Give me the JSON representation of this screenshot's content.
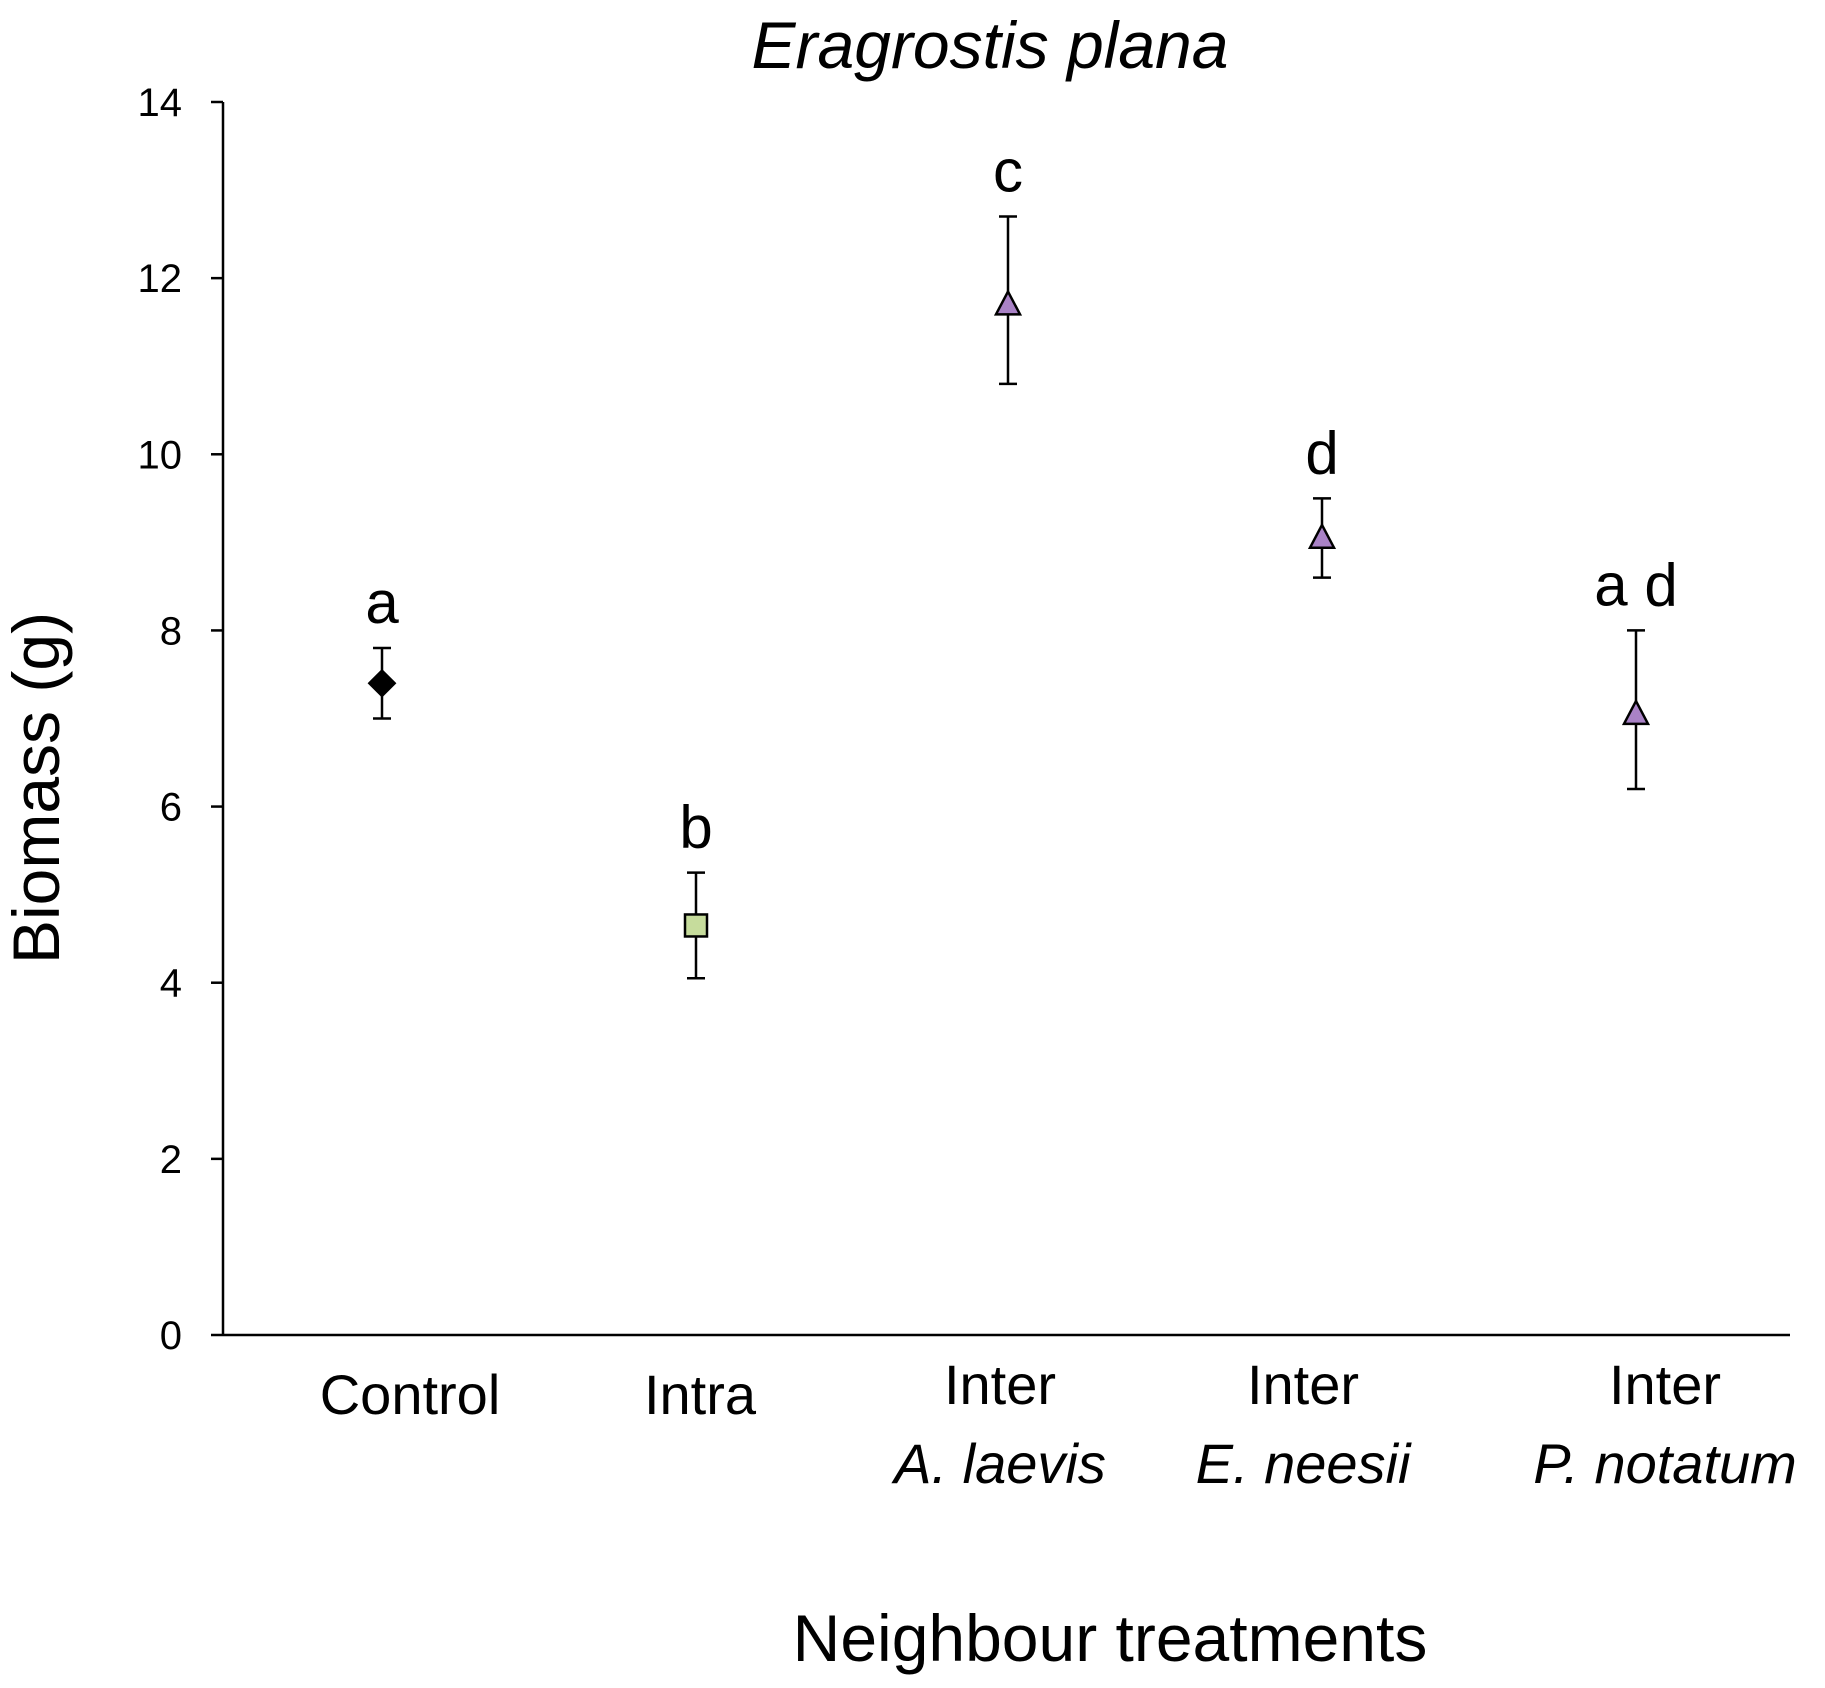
{
  "chart_data": {
    "type": "scatter",
    "title": "Eragrostis plana",
    "xlabel": "Neighbour treatments",
    "ylabel": "Biomass (g)",
    "ylim": [
      0,
      14
    ],
    "yticks": [
      "0",
      "2",
      "4",
      "6",
      "8",
      "10",
      "12",
      "14"
    ],
    "grid": false,
    "legend": "none",
    "categories": [
      {
        "line1": "Control",
        "line2": ""
      },
      {
        "line1": "Intra",
        "line2": ""
      },
      {
        "line1": "Inter",
        "line2": "A. laevis"
      },
      {
        "line1": "Inter",
        "line2": "E. neesii"
      },
      {
        "line1": "Inter",
        "line2": "P. notatum"
      }
    ],
    "points": [
      {
        "value": 7.4,
        "error_low": 7.0,
        "error_high": 7.8,
        "letter": "a",
        "marker": "diamond",
        "color": "#000000"
      },
      {
        "value": 4.65,
        "error_low": 4.05,
        "error_high": 5.25,
        "letter": "b",
        "marker": "square",
        "color": "#c6dc9c"
      },
      {
        "value": 11.7,
        "error_low": 10.8,
        "error_high": 12.7,
        "letter": "c",
        "marker": "triangle",
        "color": "#a982c6"
      },
      {
        "value": 9.05,
        "error_low": 8.6,
        "error_high": 9.5,
        "letter": "d",
        "marker": "triangle",
        "color": "#a982c6"
      },
      {
        "value": 7.05,
        "error_low": 6.2,
        "error_high": 8.0,
        "letter": "a d",
        "marker": "triangle",
        "color": "#a982c6"
      }
    ]
  }
}
